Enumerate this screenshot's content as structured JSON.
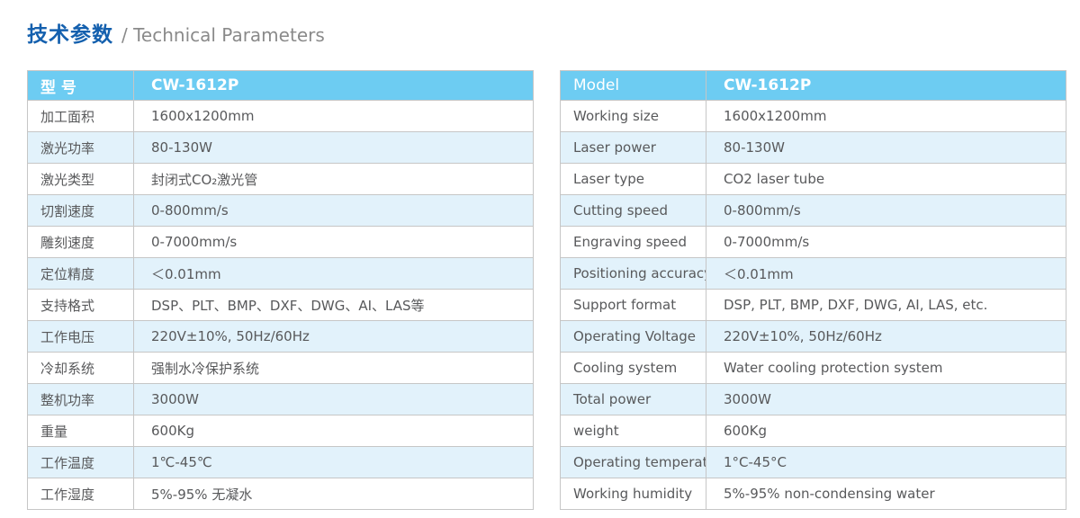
{
  "page": {
    "title_zh": "技术参数",
    "title_en": "/ Technical Parameters"
  },
  "colors": {
    "header_bg": "#6DCCF2",
    "alt_row_bg": "#E2F2FB",
    "title_blue": "#1460AE",
    "title_gray": "#8A8A8A",
    "text_gray": "#58595B",
    "border_gray": "#C6C6C6"
  },
  "tables": [
    {
      "language": "chinese",
      "header": {
        "label": "型 号",
        "value": "CW-1612P"
      },
      "rows": [
        {
          "label": "加工面积",
          "value": "1600x1200mm"
        },
        {
          "label": "激光功率",
          "value": "80-130W"
        },
        {
          "label": "激光类型",
          "value": "封闭式CO₂激光管"
        },
        {
          "label": "切割速度",
          "value": "0-800mm/s"
        },
        {
          "label": "雕刻速度",
          "value": "0-7000mm/s"
        },
        {
          "label": "定位精度",
          "value": "＜0.01mm"
        },
        {
          "label": "支持格式",
          "value": "DSP、PLT、BMP、DXF、DWG、AI、LAS等"
        },
        {
          "label": "工作电压",
          "value": "220V±10%, 50Hz/60Hz"
        },
        {
          "label": "冷却系统",
          "value": "强制水冷保护系统"
        },
        {
          "label": "整机功率",
          "value": "3000W"
        },
        {
          "label": "重量",
          "value": "600Kg"
        },
        {
          "label": "工作温度",
          "value": "1℃-45℃"
        },
        {
          "label": "工作湿度",
          "value": "5%-95% 无凝水"
        }
      ]
    },
    {
      "language": "english",
      "header": {
        "label": "Model",
        "value": "CW-1612P"
      },
      "rows": [
        {
          "label": "Working size",
          "value": "1600x1200mm"
        },
        {
          "label": "Laser power",
          "value": "80-130W"
        },
        {
          "label": "Laser type",
          "value": "CO2 laser tube"
        },
        {
          "label": "Cutting speed",
          "value": "0-800mm/s"
        },
        {
          "label": "Engraving speed",
          "value": "0-7000mm/s"
        },
        {
          "label": "Positioning accuracy",
          "value": "＜0.01mm"
        },
        {
          "label": "Support format",
          "value": "DSP, PLT, BMP, DXF, DWG, AI, LAS, etc."
        },
        {
          "label": "Operating Voltage",
          "value": "220V±10%, 50Hz/60Hz"
        },
        {
          "label": "Cooling system",
          "value": "Water cooling protection system"
        },
        {
          "label": "Total power",
          "value": "3000W"
        },
        {
          "label": "weight",
          "value": "600Kg"
        },
        {
          "label": "Operating temperature",
          "value": "1°C-45°C"
        },
        {
          "label": "Working humidity",
          "value": "5%-95% non-condensing water"
        }
      ]
    }
  ]
}
